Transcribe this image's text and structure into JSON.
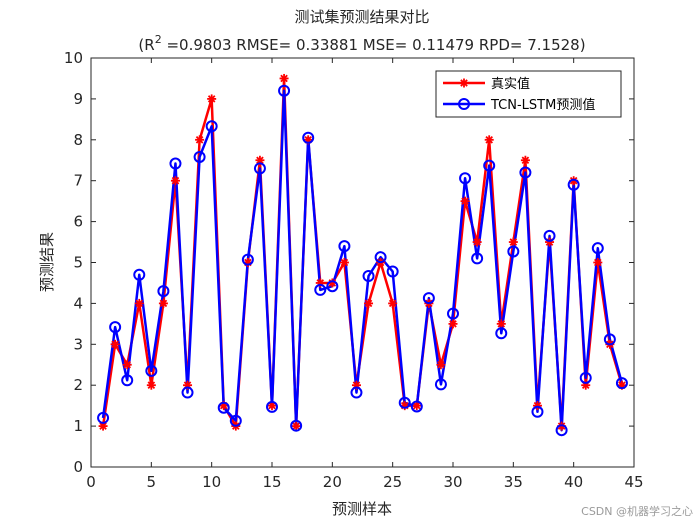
{
  "chart_data": {
    "type": "line",
    "title": "测试集预测结果对比",
    "subtitle": {
      "prefix": "(R",
      "sup": "2",
      "rest": " =0.9803 RMSE= 0.33881 MSE= 0.11479 RPD= 7.1528)"
    },
    "xlabel": "预测样本",
    "ylabel": "预测结果",
    "xlim": [
      0,
      45
    ],
    "ylim": [
      0,
      10
    ],
    "xticks": [
      0,
      5,
      10,
      15,
      20,
      25,
      30,
      35,
      40,
      45
    ],
    "yticks": [
      0,
      1,
      2,
      3,
      4,
      5,
      6,
      7,
      8,
      9,
      10
    ],
    "grid": false,
    "legend_position": "top-right",
    "x": [
      1,
      2,
      3,
      4,
      5,
      6,
      7,
      8,
      9,
      10,
      11,
      12,
      13,
      14,
      15,
      16,
      17,
      18,
      19,
      20,
      21,
      22,
      23,
      24,
      25,
      26,
      27,
      28,
      29,
      30,
      31,
      32,
      33,
      34,
      35,
      36,
      37,
      38,
      39,
      40,
      41,
      42,
      43,
      44
    ],
    "series": [
      {
        "name": "真实值",
        "color": "#ff0000",
        "marker": "asterisk",
        "values": [
          1,
          3,
          2.5,
          4,
          2,
          4,
          7,
          2,
          8,
          9,
          1.5,
          1,
          5,
          7.5,
          1.5,
          9.5,
          1,
          8,
          4.5,
          4.5,
          5,
          2,
          4,
          5,
          4,
          1.5,
          1.5,
          4,
          2.5,
          3.5,
          6.5,
          5.5,
          8,
          3.5,
          5.5,
          7.5,
          1.5,
          5.5,
          1,
          7,
          2,
          5,
          3,
          2
        ]
      },
      {
        "name": "TCN-LSTM预测值",
        "color": "#0000ff",
        "marker": "circle",
        "values": [
          1.2,
          3.42,
          2.12,
          4.7,
          2.35,
          4.3,
          7.42,
          1.82,
          7.58,
          8.33,
          1.45,
          1.13,
          5.07,
          7.3,
          1.47,
          9.2,
          1.01,
          8.05,
          4.33,
          4.42,
          5.4,
          1.82,
          4.67,
          5.13,
          4.78,
          1.57,
          1.48,
          4.13,
          2.02,
          3.75,
          7.06,
          5.1,
          7.37,
          3.27,
          5.27,
          7.2,
          1.35,
          5.65,
          0.9,
          6.9,
          2.18,
          5.35,
          3.12,
          2.05
        ]
      }
    ]
  },
  "watermark": "CSDN @机器学习之心"
}
